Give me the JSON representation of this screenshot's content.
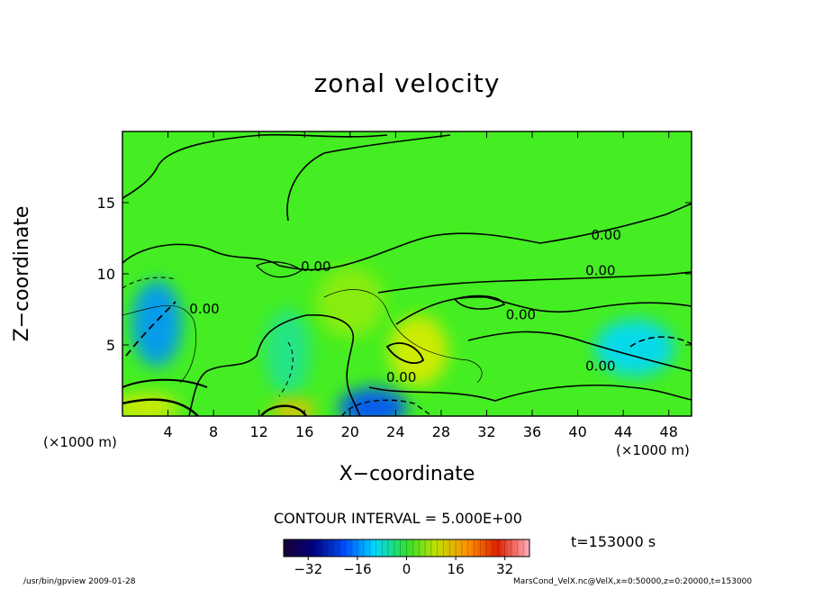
{
  "figure": {
    "title": "zonal velocity",
    "x_axis_label": "X−coordinate",
    "y_axis_label": "Z−coordinate",
    "x_unit": "(×1000 m)",
    "y_unit": "(×1000 m)",
    "contour_interval_text": "CONTOUR INTERVAL = 5.000E+00",
    "time_text": "t=153000  s",
    "footer_left": "/usr/bin/gpview   2009-01-28",
    "footer_right": "MarsCond_VelX.nc@VelX,x=0:50000,z=0:20000,t=153000"
  },
  "chart_data": {
    "type": "heatmap",
    "title": "zonal velocity",
    "xlabel": "X−coordinate",
    "ylabel": "Z−coordinate",
    "xlim": [
      0,
      50
    ],
    "ylim": [
      0,
      20
    ],
    "x_ticks": [
      4,
      8,
      12,
      16,
      20,
      24,
      28,
      32,
      36,
      40,
      44,
      48
    ],
    "y_ticks": [
      5,
      10,
      15
    ],
    "contour_interval": 5.0,
    "zero_contour_labels": [
      {
        "text": "0.00",
        "x": 42.5,
        "z": 12.4
      },
      {
        "text": "0.00",
        "x": 42.0,
        "z": 9.9
      },
      {
        "text": "0.00",
        "x": 35.0,
        "z": 6.8
      },
      {
        "text": "0.00",
        "x": 42.0,
        "z": 3.2
      },
      {
        "text": "0.00",
        "x": 24.5,
        "z": 2.4
      },
      {
        "text": "0.00",
        "x": 17.0,
        "z": 10.2
      },
      {
        "text": "0.00",
        "x": 7.2,
        "z": 7.2
      }
    ],
    "colorbar": {
      "range": [
        -40,
        40
      ],
      "ticks": [
        -32,
        -16,
        0,
        16,
        32
      ],
      "tick_labels": [
        "−32",
        "−16",
        "0",
        "16",
        "32"
      ]
    },
    "regions": [
      {
        "x": 3.0,
        "z": 6.5,
        "rx": 2.2,
        "rz": 3.0,
        "value": -15
      },
      {
        "x": 22.0,
        "z": 0.6,
        "rx": 3.0,
        "rz": 1.4,
        "value": -20
      },
      {
        "x": 45.0,
        "z": 4.8,
        "rx": 3.5,
        "rz": 2.0,
        "value": -10
      },
      {
        "x": 14.5,
        "z": 4.5,
        "rx": 2.0,
        "rz": 3.0,
        "value": -5
      },
      {
        "x": 26.0,
        "z": 4.6,
        "rx": 2.6,
        "rz": 2.5,
        "value": 10
      },
      {
        "x": 20.0,
        "z": 8.0,
        "rx": 3.0,
        "rz": 2.5,
        "value": 5
      },
      {
        "x": 2.0,
        "z": 0.6,
        "rx": 3.0,
        "rz": 1.0,
        "value": 10
      },
      {
        "x": 15.0,
        "z": 0.4,
        "rx": 2.0,
        "rz": 0.8,
        "value": 15
      }
    ]
  }
}
